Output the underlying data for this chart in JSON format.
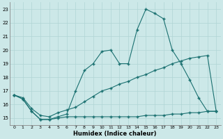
{
  "xlabel": "Humidex (Indice chaleur)",
  "bg_color": "#cce8e8",
  "grid_color": "#b0d4d4",
  "line_color": "#1a7070",
  "xlim": [
    -0.5,
    23.5
  ],
  "ylim": [
    14.5,
    23.5
  ],
  "yticks": [
    15,
    16,
    17,
    18,
    19,
    20,
    21,
    22,
    23
  ],
  "xticks": [
    0,
    1,
    2,
    3,
    4,
    5,
    6,
    7,
    8,
    9,
    10,
    11,
    12,
    13,
    14,
    15,
    16,
    17,
    18,
    19,
    20,
    21,
    22,
    23
  ],
  "line1_x": [
    0,
    1,
    2,
    3,
    4,
    5,
    6,
    7,
    8,
    9,
    10,
    11,
    12,
    13,
    14,
    15,
    16,
    17,
    18,
    19,
    20,
    21,
    22,
    23
  ],
  "line1_y": [
    16.7,
    16.4,
    15.5,
    14.9,
    14.9,
    15.0,
    15.1,
    15.1,
    15.1,
    15.1,
    15.1,
    15.1,
    15.1,
    15.1,
    15.1,
    15.2,
    15.2,
    15.2,
    15.3,
    15.3,
    15.4,
    15.4,
    15.5,
    15.5
  ],
  "line2_x": [
    0,
    1,
    2,
    3,
    4,
    5,
    6,
    7,
    8,
    9,
    10,
    11,
    12,
    13,
    14,
    15,
    16,
    17,
    18,
    19,
    20,
    21,
    22,
    23
  ],
  "line2_y": [
    16.7,
    16.5,
    15.7,
    15.2,
    15.1,
    15.4,
    15.6,
    15.8,
    16.2,
    16.6,
    17.0,
    17.2,
    17.5,
    17.7,
    18.0,
    18.2,
    18.5,
    18.7,
    19.0,
    19.2,
    19.4,
    19.5,
    19.6,
    15.5
  ],
  "line3_x": [
    0,
    1,
    2,
    3,
    4,
    5,
    6,
    7,
    8,
    9,
    10,
    11,
    12,
    13,
    14,
    15,
    16,
    17,
    18,
    19,
    20,
    21,
    22,
    23
  ],
  "line3_y": [
    16.7,
    16.4,
    15.5,
    14.9,
    14.9,
    15.1,
    15.3,
    17.0,
    18.5,
    19.0,
    19.9,
    20.0,
    19.0,
    19.0,
    21.5,
    23.0,
    22.7,
    22.3,
    20.0,
    19.0,
    17.8,
    16.5,
    15.5,
    15.5
  ]
}
